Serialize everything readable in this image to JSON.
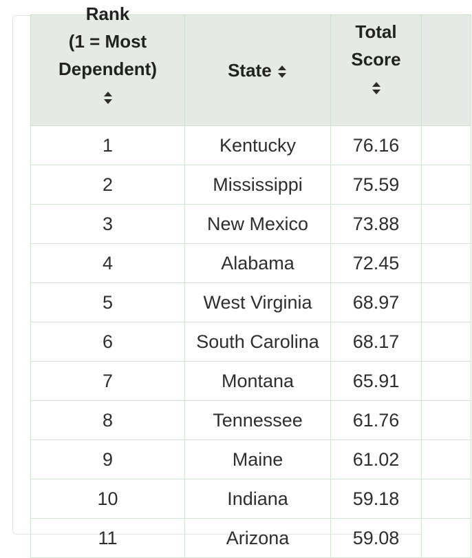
{
  "table": {
    "headers": {
      "rank_line1": "Rank",
      "rank_line2": "(1 = Most",
      "rank_line3": "Dependent)",
      "state": "State",
      "score_line1": "Total",
      "score_line2": "Score"
    },
    "sort_icon": "sort-arrows-icon",
    "rows": [
      {
        "rank": "1",
        "state": "Kentucky",
        "score": "76.16"
      },
      {
        "rank": "2",
        "state": "Mississippi",
        "score": "75.59"
      },
      {
        "rank": "3",
        "state": "New Mexico",
        "score": "73.88"
      },
      {
        "rank": "4",
        "state": "Alabama",
        "score": "72.45"
      },
      {
        "rank": "5",
        "state": "West Virginia",
        "score": "68.97"
      },
      {
        "rank": "6",
        "state": "South Carolina",
        "score": "68.17"
      },
      {
        "rank": "7",
        "state": "Montana",
        "score": "65.91"
      },
      {
        "rank": "8",
        "state": "Tennessee",
        "score": "61.76"
      },
      {
        "rank": "9",
        "state": "Maine",
        "score": "61.02"
      },
      {
        "rank": "10",
        "state": "Indiana",
        "score": "59.18"
      },
      {
        "rank": "11",
        "state": "Arizona",
        "score": "59.08"
      }
    ]
  },
  "colors": {
    "header_bg": "#e6eae6",
    "grid_line": "#d2e3d2",
    "text": "#2e2e2e"
  }
}
